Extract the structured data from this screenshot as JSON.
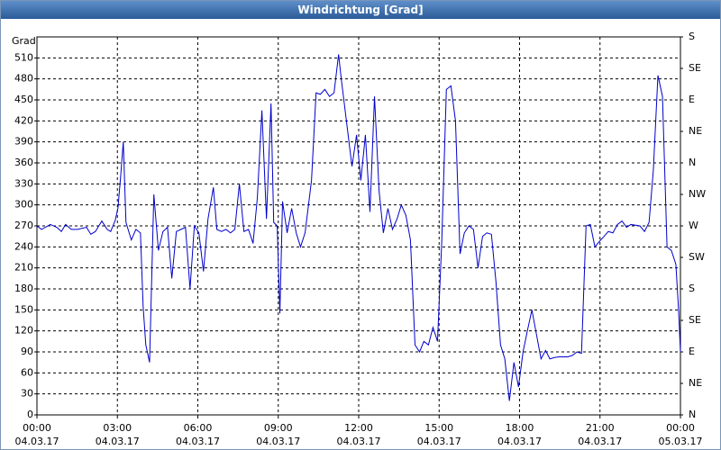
{
  "title": "Windrichtung [Grad]",
  "chart_data": {
    "type": "line",
    "y_label": "Grad",
    "xlim": [
      0,
      24
    ],
    "xticks": [
      {
        "value": 0,
        "label": "00:00",
        "date": "04.03.17"
      },
      {
        "value": 3,
        "label": "03:00",
        "date": "04.03.17"
      },
      {
        "value": 6,
        "label": "06:00",
        "date": "04.03.17"
      },
      {
        "value": 9,
        "label": "09:00",
        "date": "04.03.17"
      },
      {
        "value": 12,
        "label": "12:00",
        "date": "04.03.17"
      },
      {
        "value": 15,
        "label": "15:00",
        "date": "04.03.17"
      },
      {
        "value": 18,
        "label": "18:00",
        "date": "04.03.17"
      },
      {
        "value": 21,
        "label": "21:00",
        "date": "04.03.17"
      },
      {
        "value": 24,
        "label": "00:00",
        "date": "05.03.17"
      }
    ],
    "ylim": [
      0,
      540
    ],
    "yticks": [
      0,
      30,
      60,
      90,
      120,
      150,
      180,
      210,
      240,
      270,
      300,
      330,
      360,
      390,
      420,
      450,
      480,
      510
    ],
    "y2lim": [
      0,
      540
    ],
    "y2ticks": [
      {
        "value": 0,
        "label": "N"
      },
      {
        "value": 45,
        "label": "NE"
      },
      {
        "value": 90,
        "label": "E"
      },
      {
        "value": 135,
        "label": "SE"
      },
      {
        "value": 180,
        "label": "S"
      },
      {
        "value": 225,
        "label": "SW"
      },
      {
        "value": 270,
        "label": "W"
      },
      {
        "value": 315,
        "label": "NW"
      },
      {
        "value": 360,
        "label": "N"
      },
      {
        "value": 405,
        "label": "NE"
      },
      {
        "value": 450,
        "label": "E"
      },
      {
        "value": 495,
        "label": "SE"
      },
      {
        "value": 540,
        "label": "S"
      }
    ],
    "grid": true,
    "series": [
      {
        "color": "#0000cc",
        "x": [
          0,
          0.17,
          0.5,
          0.74,
          0.91,
          1.07,
          1.28,
          1.51,
          1.85,
          2.01,
          2.18,
          2.42,
          2.62,
          2.75,
          2.92,
          3.02,
          3.12,
          3.22,
          3.32,
          3.52,
          3.69,
          3.86,
          3.96,
          4.06,
          4.2,
          4.36,
          4.53,
          4.7,
          4.87,
          5.03,
          5.2,
          5.37,
          5.54,
          5.71,
          5.87,
          6.04,
          6.21,
          6.38,
          6.58,
          6.71,
          6.88,
          7.05,
          7.22,
          7.38,
          7.55,
          7.72,
          7.89,
          8.06,
          8.22,
          8.39,
          8.56,
          8.73,
          8.83,
          8.96,
          9.06,
          9.16,
          9.33,
          9.5,
          9.67,
          9.83,
          10,
          10.24,
          10.41,
          10.57,
          10.74,
          10.91,
          11.08,
          11.25,
          11.35,
          11.51,
          11.75,
          11.92,
          12.08,
          12.25,
          12.42,
          12.59,
          12.76,
          12.92,
          13.09,
          13.26,
          13.43,
          13.59,
          13.76,
          13.93,
          14.1,
          14.27,
          14.43,
          14.6,
          14.77,
          14.94,
          15.1,
          15.27,
          15.44,
          15.61,
          15.78,
          15.94,
          16.11,
          16.28,
          16.45,
          16.62,
          16.78,
          16.95,
          17.12,
          17.29,
          17.45,
          17.62,
          17.79,
          17.96,
          18.13,
          18.29,
          18.46,
          18.63,
          18.8,
          18.97,
          19.13,
          19.3,
          19.47,
          19.8,
          19.97,
          20.14,
          20.31,
          20.48,
          20.64,
          20.81,
          20.98,
          21.15,
          21.31,
          21.48,
          21.65,
          21.82,
          21.99,
          22.15,
          22.49,
          22.66,
          22.83,
          22.99,
          23.16,
          23.33,
          23.5,
          23.66,
          23.83,
          23.93,
          24
        ],
        "values": [
          270,
          265,
          272,
          268,
          262,
          272,
          265,
          265,
          268,
          258,
          262,
          277,
          265,
          262,
          278,
          295,
          340,
          390,
          275,
          250,
          265,
          260,
          155,
          100,
          75,
          315,
          235,
          262,
          268,
          195,
          262,
          265,
          268,
          180,
          270,
          260,
          205,
          280,
          325,
          265,
          262,
          265,
          260,
          265,
          330,
          262,
          265,
          245,
          310,
          435,
          280,
          445,
          275,
          270,
          145,
          305,
          260,
          295,
          260,
          240,
          260,
          335,
          460,
          458,
          465,
          455,
          460,
          515,
          480,
          430,
          355,
          400,
          335,
          400,
          290,
          455,
          320,
          260,
          295,
          265,
          280,
          300,
          285,
          250,
          100,
          90,
          105,
          100,
          125,
          105,
          250,
          465,
          470,
          420,
          230,
          260,
          270,
          265,
          210,
          255,
          260,
          258,
          190,
          100,
          80,
          20,
          75,
          40,
          90,
          120,
          150,
          115,
          80,
          92,
          80,
          82,
          83,
          83,
          85,
          90,
          88,
          270,
          272,
          240,
          248,
          255,
          262,
          260,
          272,
          277,
          268,
          272,
          270,
          262,
          275,
          350,
          485,
          455,
          240,
          235,
          215,
          150,
          90
        ]
      }
    ]
  }
}
